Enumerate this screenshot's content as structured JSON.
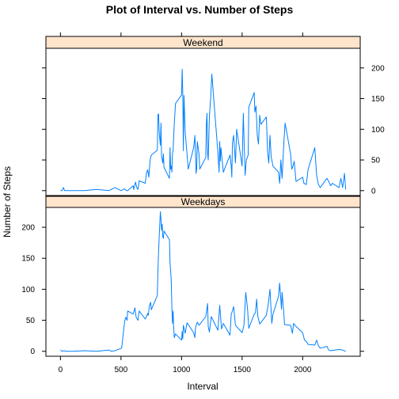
{
  "chart_data": {
    "type": "line",
    "title": "Plot of Interval vs. Number of Steps",
    "xlabel": "Interval",
    "ylabel": "Number of Steps",
    "xlim": [
      -120,
      2475
    ],
    "ylim": [
      -8,
      232
    ],
    "x_ticks": [
      0,
      500,
      1000,
      1500,
      2000
    ],
    "y_ticks": [
      0,
      50,
      100,
      150,
      200
    ],
    "line_color": "#0080ff",
    "strip_color": "#ffe5cc",
    "layout": "2 rows, 1 column (lattice xyplot)",
    "panels": [
      {
        "name": "Weekend",
        "position": "top",
        "y_tick_side": "right",
        "x_tick_side": "none",
        "x": [
          0,
          15,
          25,
          35,
          45,
          55,
          100,
          200,
          300,
          400,
          450,
          500,
          530,
          545,
          555,
          600,
          605,
          615,
          620,
          630,
          640,
          650,
          700,
          710,
          720,
          730,
          740,
          750,
          800,
          805,
          810,
          815,
          825,
          830,
          835,
          845,
          850,
          855,
          900,
          905,
          910,
          915,
          920,
          925,
          930,
          940,
          950,
          1000,
          1005,
          1010,
          1015,
          1020,
          1030,
          1045,
          1055,
          1100,
          1110,
          1115,
          1120,
          1125,
          1130,
          1145,
          1150,
          1200,
          1205,
          1210,
          1215,
          1220,
          1230,
          1240,
          1250,
          1300,
          1305,
          1310,
          1315,
          1320,
          1325,
          1335,
          1345,
          1400,
          1410,
          1415,
          1420,
          1430,
          1445,
          1455,
          1500,
          1510,
          1515,
          1525,
          1535,
          1550,
          1555,
          1600,
          1605,
          1615,
          1625,
          1635,
          1645,
          1655,
          1700,
          1710,
          1720,
          1730,
          1740,
          1755,
          1800,
          1810,
          1820,
          1830,
          1845,
          1855,
          1900,
          1910,
          1920,
          1930,
          1945,
          2000,
          2010,
          2030,
          2045,
          2100,
          2115,
          2130,
          2145,
          2200,
          2215,
          2230,
          2245,
          2300,
          2315,
          2325,
          2330,
          2345,
          2355
        ],
        "y": [
          0,
          0,
          5,
          0,
          0,
          0,
          0,
          0,
          2,
          0,
          5,
          0,
          3,
          0,
          0,
          8,
          2,
          10,
          14,
          5,
          2,
          16,
          12,
          28,
          34,
          22,
          50,
          58,
          66,
          124,
          125,
          95,
          74,
          110,
          56,
          45,
          60,
          38,
          20,
          70,
          35,
          40,
          30,
          60,
          65,
          110,
          142,
          156,
          198,
          160,
          65,
          155,
          95,
          60,
          35,
          70,
          90,
          62,
          28,
          36,
          80,
          58,
          35,
          54,
          110,
          126,
          60,
          50,
          122,
          150,
          190,
          62,
          45,
          30,
          80,
          48,
          70,
          50,
          30,
          58,
          40,
          22,
          78,
          90,
          45,
          100,
          40,
          126,
          90,
          25,
          50,
          58,
          136,
          160,
          128,
          138,
          90,
          76,
          123,
          108,
          120,
          64,
          45,
          90,
          55,
          40,
          30,
          12,
          50,
          20,
          80,
          110,
          60,
          35,
          40,
          48,
          15,
          22,
          12,
          10,
          35,
          70,
          25,
          10,
          5,
          20,
          15,
          8,
          12,
          5,
          20,
          10,
          5,
          28,
          2
        ]
      },
      {
        "name": "Weekdays",
        "position": "bottom",
        "y_tick_side": "left",
        "x_tick_side": "bottom",
        "x": [
          0,
          15,
          30,
          45,
          100,
          200,
          300,
          400,
          420,
          450,
          505,
          530,
          540,
          550,
          555,
          600,
          605,
          615,
          625,
          640,
          645,
          650,
          700,
          710,
          720,
          725,
          735,
          745,
          750,
          800,
          805,
          810,
          815,
          820,
          825,
          830,
          835,
          840,
          845,
          850,
          855,
          900,
          905,
          910,
          915,
          920,
          925,
          930,
          935,
          940,
          950,
          1000,
          1005,
          1010,
          1015,
          1020,
          1030,
          1045,
          1100,
          1110,
          1115,
          1130,
          1145,
          1200,
          1210,
          1215,
          1220,
          1230,
          1245,
          1300,
          1310,
          1315,
          1330,
          1345,
          1400,
          1410,
          1415,
          1430,
          1445,
          1500,
          1515,
          1530,
          1545,
          1555,
          1600,
          1610,
          1620,
          1630,
          1645,
          1700,
          1715,
          1730,
          1745,
          1755,
          1800,
          1810,
          1825,
          1830,
          1845,
          1850,
          1900,
          1915,
          1925,
          1945,
          2000,
          2015,
          2030,
          2045,
          2100,
          2115,
          2130,
          2145,
          2200,
          2215,
          2230,
          2300,
          2330,
          2355
        ],
        "y": [
          2,
          0,
          1,
          0,
          0,
          1,
          0,
          2,
          0,
          1,
          5,
          48,
          55,
          50,
          65,
          60,
          63,
          70,
          55,
          50,
          58,
          65,
          52,
          56,
          61,
          58,
          74,
          79,
          67,
          90,
          130,
          160,
          183,
          205,
          225,
          212,
          195,
          205,
          185,
          182,
          194,
          180,
          141,
          130,
          112,
          69,
          45,
          65,
          38,
          22,
          28,
          18,
          32,
          20,
          42,
          38,
          29,
          46,
          30,
          22,
          38,
          47,
          42,
          56,
          70,
          77,
          40,
          31,
          56,
          34,
          60,
          74,
          36,
          45,
          26,
          60,
          62,
          72,
          42,
          30,
          42,
          95,
          68,
          37,
          60,
          62,
          84,
          56,
          44,
          58,
          75,
          100,
          45,
          60,
          88,
          110,
          68,
          95,
          60,
          43,
          42,
          29,
          45,
          40,
          30,
          18,
          16,
          11,
          10,
          18,
          9,
          5,
          8,
          2,
          1,
          3,
          2,
          0
        ]
      }
    ]
  }
}
